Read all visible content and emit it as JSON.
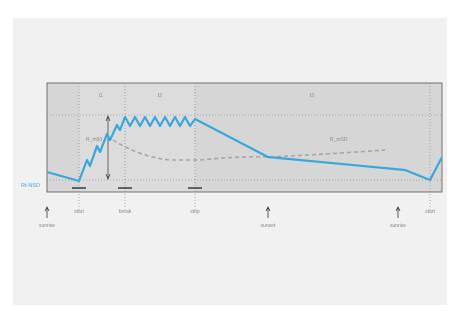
{
  "diagram": {
    "phases": {
      "p1": "t1",
      "p2": "t2",
      "p3": "t3"
    },
    "series": {
      "main_color": "#3aa7dc",
      "dashed_color": "#a6a6a6",
      "main_label": "Rt-NSD",
      "dashed_label_left": "R_m50",
      "dashed_label_right": "R_mSD"
    },
    "events": {
      "start": "start",
      "break": "break",
      "stop": "stop",
      "start_right": "start",
      "sunrise_left": "sunrise",
      "sunset": "sunset",
      "sunrise_right": "sunrise"
    }
  }
}
